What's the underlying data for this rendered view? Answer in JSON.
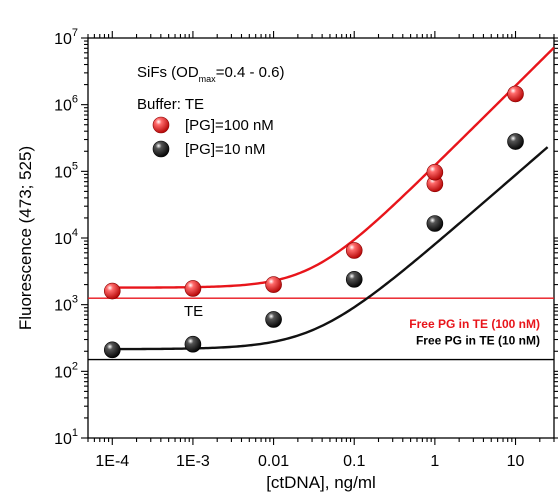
{
  "chart_data": {
    "type": "scatter",
    "xlabel": "[ctDNA], ng/ml",
    "ylabel": "Fluorescence (473; 525)",
    "x_scale": "log",
    "y_scale": "log",
    "xlim": [
      5e-05,
      30
    ],
    "ylim": [
      10,
      10000000
    ],
    "x_ticks": [
      "1E-4",
      "1E-3",
      "0.01",
      "0.1",
      "1",
      "10"
    ],
    "y_ticks": [
      {
        "base": "10",
        "exp": "1"
      },
      {
        "base": "10",
        "exp": "2"
      },
      {
        "base": "10",
        "exp": "3"
      },
      {
        "base": "10",
        "exp": "4"
      },
      {
        "base": "10",
        "exp": "5"
      },
      {
        "base": "10",
        "exp": "6"
      },
      {
        "base": "10",
        "exp": "7"
      }
    ],
    "annotation_title": {
      "prefix": "SiFs (OD",
      "sub": "max",
      "suffix": "=0.4 - 0.6)"
    },
    "annotation_buffer": "Buffer: TE",
    "point_label": "TE",
    "series": [
      {
        "name": "[PG]=100 nM",
        "color": "#e8151b",
        "points": [
          [
            0.0001,
            1600
          ],
          [
            0.001,
            1750
          ],
          [
            0.01,
            2000
          ],
          [
            0.1,
            6500
          ],
          [
            1,
            65000
          ],
          [
            1,
            97000
          ],
          [
            10,
            1450000
          ]
        ],
        "fit": {
          "base": 1800,
          "k": 0.03,
          "n": 1.2,
          "x_from": 0.0001,
          "x_to": 30
        }
      },
      {
        "name": "[PG]=10 nM",
        "color": "#111111",
        "points": [
          [
            0.0001,
            210
          ],
          [
            0.001,
            255
          ],
          [
            0.01,
            600
          ],
          [
            0.1,
            2400
          ],
          [
            1,
            16500
          ],
          [
            10,
            280000
          ]
        ],
        "fit": {
          "base": 215,
          "k": 0.0325,
          "n": 1.05,
          "x_from": 0.0001,
          "x_to": 25
        }
      }
    ],
    "reference_lines": [
      {
        "label": "Free PG in TE (100 nM)",
        "y": 1250,
        "color": "#e8151b"
      },
      {
        "label": "Free PG in TE (10 nM)",
        "y": 150,
        "color": "#000000"
      }
    ]
  }
}
